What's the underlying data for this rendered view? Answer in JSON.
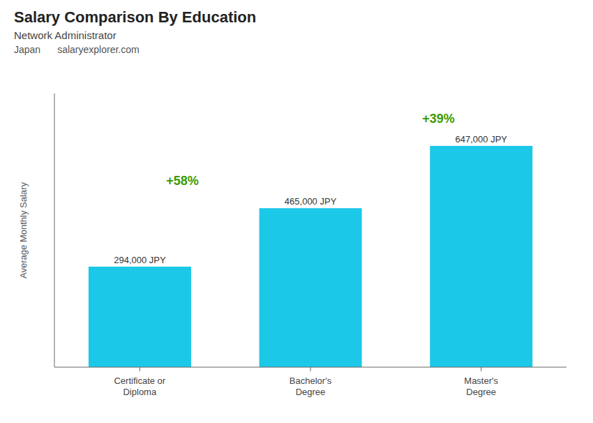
{
  "chart_data": {
    "type": "bar",
    "title": "Salary Comparison By Education",
    "subtitle": "Network Administrator",
    "y_label": "Average Monthly Salary",
    "categories": [
      "Certificate or\nDiploma",
      "Bachelor's\nDegree",
      "Master's\nDegree"
    ],
    "values": [
      294000,
      465000,
      647000
    ],
    "value_labels": [
      "294,000 JPY",
      "465,000 JPY",
      "647,000 JPY"
    ],
    "data_labels": true,
    "color": "#1cc8e8",
    "ylim": [
      0,
      800000
    ],
    "tick_labels": "x",
    "grid": false,
    "annotations": [
      {
        "text": "Japan"
      },
      {
        "text": "salaryexplorer.com"
      },
      {
        "text": "+58%",
        "from": "Certificate or\nDiploma",
        "to": "Bachelor's\nDegree"
      },
      {
        "text": "+39%",
        "from": "Bachelor's\nDegree",
        "to": "Master's\nDegree"
      }
    ]
  }
}
